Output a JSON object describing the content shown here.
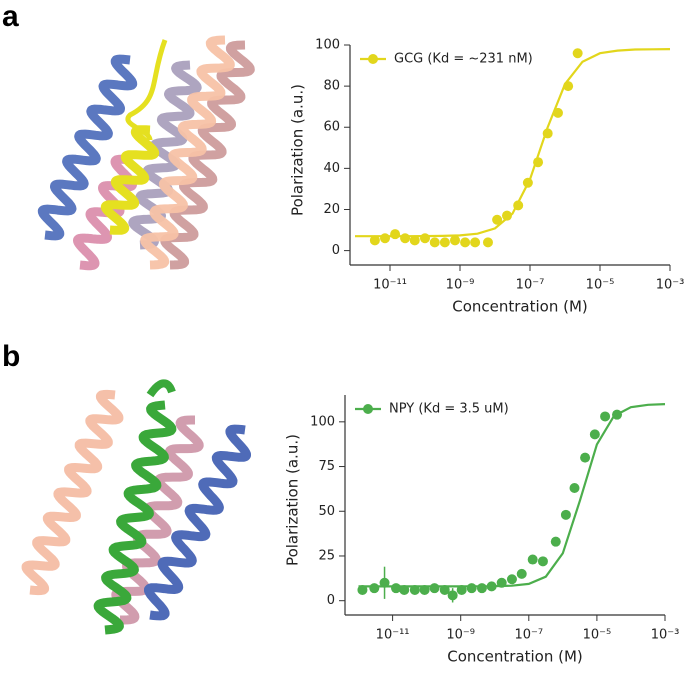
{
  "panel_labels": [
    "a",
    "b"
  ],
  "chart_data": [
    {
      "type": "scatter",
      "xlabel": "Concentration (M)",
      "ylabel": "Polarization (a.u.)",
      "xscale": "log",
      "legend": "upper left",
      "xlim": [
        7.2e-13,
        0.001
      ],
      "ylim": [
        -7,
        100
      ],
      "xticks": [
        {
          "value": 1e-11,
          "label": "10⁻¹¹"
        },
        {
          "value": 1e-09,
          "label": "10⁻⁹"
        },
        {
          "value": 1e-07,
          "label": "10⁻⁷"
        },
        {
          "value": 1e-05,
          "label": "10⁻⁵"
        },
        {
          "value": 0.001,
          "label": "10⁻³"
        }
      ],
      "yticks": [
        0,
        20,
        40,
        60,
        80,
        100
      ],
      "series": [
        {
          "name": "GCG (Kd = ~231 nM)",
          "color": "#e2d61c",
          "x": [
            3.7e-12,
            7.2e-12,
            1.4e-11,
            2.7e-11,
            5.1e-11,
            1e-10,
            1.9e-10,
            3.7e-10,
            7.2e-10,
            1.4e-09,
            2.7e-09,
            6.3e-09,
            1.15e-08,
            2.2e-08,
            4.6e-08,
            8.7e-08,
            1.7e-07,
            3.2e-07,
            6.3e-07,
            1.23e-06,
            2.3e-06
          ],
          "values": [
            5,
            6,
            8,
            6,
            5,
            6,
            4,
            4,
            5,
            4,
            4,
            4,
            15,
            17,
            22,
            33,
            43,
            57,
            67,
            80,
            96
          ]
        }
      ],
      "fit": {
        "x": [
          1e-12,
          3.16e-12,
          1e-11,
          3.16e-11,
          1e-10,
          3.16e-10,
          1e-09,
          3.16e-09,
          1e-08,
          3.16e-08,
          1e-07,
          3.16e-07,
          1e-06,
          3.16e-06,
          1e-05,
          3.16e-05,
          0.0001,
          0.000316,
          0.001
        ],
        "values": [
          7,
          7,
          7,
          7,
          7.04,
          7.13,
          7.4,
          8.2,
          10.8,
          18,
          34.7,
          59.8,
          81,
          91.9,
          96,
          97.3,
          97.8,
          97.9,
          98
        ]
      }
    },
    {
      "type": "scatter",
      "xlabel": "Concentration (M)",
      "ylabel": "Polarization (a.u.)",
      "xscale": "log",
      "legend": "upper left",
      "xlim": [
        4e-13,
        0.001
      ],
      "ylim": [
        -8,
        115
      ],
      "xticks": [
        {
          "value": 1e-11,
          "label": "10⁻¹¹"
        },
        {
          "value": 1e-09,
          "label": "10⁻⁹"
        },
        {
          "value": 1e-07,
          "label": "10⁻⁷"
        },
        {
          "value": 1e-05,
          "label": "10⁻⁵"
        },
        {
          "value": 0.001,
          "label": "10⁻³"
        }
      ],
      "yticks": [
        0,
        25,
        50,
        75,
        100
      ],
      "series": [
        {
          "name": "NPY (Kd = 3.5 uM)",
          "color": "#4cae4c",
          "x": [
            1.3e-12,
            2.9e-12,
            5.8e-12,
            1.26e-11,
            2.2e-11,
            4.5e-11,
            8.7e-11,
            1.7e-10,
            3.4e-10,
            5.8e-10,
            1.07e-09,
            2.1e-09,
            4.2e-09,
            8.1e-09,
            1.6e-08,
            3.2e-08,
            6.2e-08,
            1.3e-07,
            2.6e-07,
            6.2e-07,
            1.23e-06,
            2.2e-06,
            4.5e-06,
            8.7e-06,
            1.74e-05,
            3.9e-05
          ],
          "values": [
            6,
            7,
            10,
            7,
            6,
            6,
            6,
            7,
            6,
            3,
            6,
            7,
            7,
            8,
            10,
            12,
            15,
            23,
            22,
            33,
            48,
            63,
            80,
            93,
            103,
            104
          ],
          "errors": [
            1,
            1,
            9,
            1,
            1,
            1,
            1,
            1,
            1,
            4,
            1,
            1,
            1,
            1,
            1,
            1,
            1,
            1,
            1,
            1,
            1,
            1,
            1,
            1,
            1,
            1
          ]
        }
      ],
      "fit": {
        "x": [
          1e-12,
          3.16e-12,
          1e-11,
          3.16e-11,
          1e-10,
          3.16e-10,
          1e-09,
          3.16e-09,
          1e-08,
          3.16e-08,
          1e-07,
          3.16e-07,
          1e-06,
          3.16e-06,
          1e-05,
          3.16e-05,
          0.0001,
          0.000316,
          0.001
        ],
        "values": [
          8,
          8,
          8,
          8,
          8,
          8,
          8,
          8.02,
          8.09,
          8.36,
          9.41,
          13.4,
          26.5,
          55.9,
          87.4,
          103.2,
          108.2,
          109.5,
          109.9
        ]
      }
    }
  ]
}
